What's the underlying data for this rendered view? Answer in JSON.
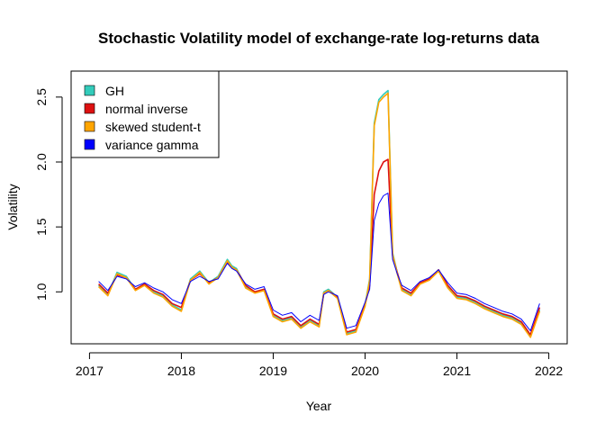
{
  "chart_data": {
    "type": "line",
    "title": "Stochastic Volatility model of exchange-rate log-returns data",
    "xlabel": "Year",
    "ylabel": "Volatility",
    "xlim": [
      2016.8,
      2022.2
    ],
    "ylim": [
      0.6,
      2.7
    ],
    "x_ticks": [
      2017,
      2018,
      2019,
      2020,
      2021,
      2022
    ],
    "x_tick_labels": [
      "2017",
      "2018",
      "2019",
      "2020",
      "2021",
      "2022"
    ],
    "y_ticks": [
      1.0,
      1.5,
      2.0,
      2.5
    ],
    "y_tick_labels": [
      "1.0",
      "1.5",
      "2.0",
      "2.5"
    ],
    "grid": false,
    "legend_position": "top-left",
    "x": [
      2017.1,
      2017.2,
      2017.3,
      2017.4,
      2017.5,
      2017.6,
      2017.7,
      2017.8,
      2017.9,
      2018.0,
      2018.1,
      2018.2,
      2018.3,
      2018.4,
      2018.5,
      2018.55,
      2018.6,
      2018.7,
      2018.8,
      2018.9,
      2019.0,
      2019.1,
      2019.2,
      2019.3,
      2019.4,
      2019.5,
      2019.55,
      2019.6,
      2019.7,
      2019.8,
      2019.9,
      2020.0,
      2020.05,
      2020.1,
      2020.15,
      2020.2,
      2020.25,
      2020.3,
      2020.35,
      2020.4,
      2020.5,
      2020.6,
      2020.7,
      2020.8,
      2020.9,
      2021.0,
      2021.1,
      2021.2,
      2021.3,
      2021.4,
      2021.5,
      2021.6,
      2021.7,
      2021.8,
      2021.9
    ],
    "series": [
      {
        "name": "GH",
        "color": "#33ccbb",
        "values": [
          1.05,
          0.98,
          1.15,
          1.12,
          1.02,
          1.06,
          1.0,
          0.97,
          0.9,
          0.86,
          1.1,
          1.16,
          1.07,
          1.12,
          1.25,
          1.2,
          1.18,
          1.04,
          1.0,
          1.02,
          0.82,
          0.78,
          0.8,
          0.73,
          0.78,
          0.74,
          1.0,
          1.02,
          0.96,
          0.68,
          0.7,
          0.9,
          1.1,
          2.3,
          2.48,
          2.52,
          2.55,
          1.3,
          1.15,
          1.02,
          0.98,
          1.07,
          1.1,
          1.17,
          1.04,
          0.96,
          0.95,
          0.92,
          0.88,
          0.85,
          0.82,
          0.8,
          0.76,
          0.66,
          0.86
        ]
      },
      {
        "name": "normal inverse",
        "color": "#dd1111",
        "values": [
          1.06,
          0.99,
          1.13,
          1.11,
          1.02,
          1.06,
          1.01,
          0.98,
          0.91,
          0.88,
          1.09,
          1.14,
          1.07,
          1.11,
          1.23,
          1.19,
          1.17,
          1.05,
          1.0,
          1.02,
          0.83,
          0.79,
          0.81,
          0.74,
          0.79,
          0.75,
          0.99,
          1.01,
          0.96,
          0.69,
          0.71,
          0.9,
          1.05,
          1.75,
          1.93,
          2.0,
          2.02,
          1.28,
          1.15,
          1.03,
          0.99,
          1.07,
          1.1,
          1.17,
          1.05,
          0.97,
          0.96,
          0.93,
          0.89,
          0.86,
          0.83,
          0.81,
          0.77,
          0.67,
          0.88
        ]
      },
      {
        "name": "skewed student-t",
        "color": "#ffa500",
        "values": [
          1.04,
          0.97,
          1.14,
          1.11,
          1.01,
          1.05,
          0.99,
          0.96,
          0.89,
          0.85,
          1.09,
          1.15,
          1.06,
          1.11,
          1.24,
          1.19,
          1.17,
          1.03,
          0.99,
          1.01,
          0.81,
          0.77,
          0.79,
          0.72,
          0.77,
          0.73,
          0.99,
          1.01,
          0.95,
          0.67,
          0.69,
          0.89,
          1.09,
          2.28,
          2.46,
          2.5,
          2.53,
          1.29,
          1.14,
          1.01,
          0.97,
          1.06,
          1.09,
          1.16,
          1.03,
          0.95,
          0.94,
          0.91,
          0.87,
          0.84,
          0.81,
          0.79,
          0.75,
          0.65,
          0.85
        ]
      },
      {
        "name": "variance gamma",
        "color": "#0000ff",
        "values": [
          1.08,
          1.01,
          1.12,
          1.1,
          1.04,
          1.07,
          1.03,
          1.0,
          0.94,
          0.91,
          1.08,
          1.12,
          1.08,
          1.1,
          1.22,
          1.18,
          1.16,
          1.06,
          1.02,
          1.04,
          0.86,
          0.82,
          0.84,
          0.77,
          0.82,
          0.78,
          0.98,
          1.0,
          0.97,
          0.72,
          0.74,
          0.92,
          1.02,
          1.55,
          1.68,
          1.74,
          1.76,
          1.25,
          1.14,
          1.05,
          1.01,
          1.08,
          1.11,
          1.17,
          1.07,
          0.99,
          0.98,
          0.95,
          0.91,
          0.88,
          0.85,
          0.83,
          0.79,
          0.7,
          0.91
        ]
      }
    ]
  }
}
